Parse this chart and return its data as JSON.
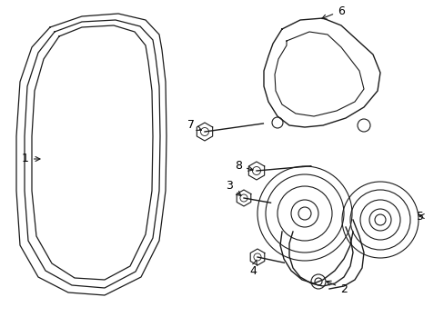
{
  "bg_color": "#ffffff",
  "line_color": "#1a1a1a",
  "label_color": "#000000",
  "line_width": 1.0,
  "fig_width": 4.89,
  "fig_height": 3.6,
  "dpi": 100
}
